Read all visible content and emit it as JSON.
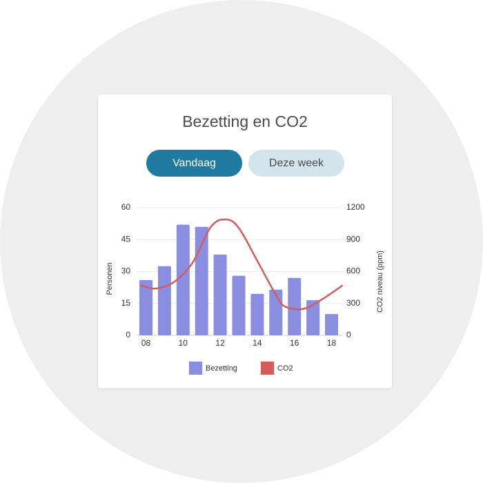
{
  "card": {
    "title": "Bezetting en CO2",
    "tabs": [
      {
        "label": "Vandaag",
        "active": true
      },
      {
        "label": "Deze week",
        "active": false
      }
    ]
  },
  "colors": {
    "bar": "#8a8ee0",
    "line": "#d45c5c",
    "tab_active_bg": "#1f7aa0",
    "tab_inactive_bg": "#d4e4ec"
  },
  "chart_data": {
    "type": "bar",
    "x": [
      8,
      9,
      10,
      11,
      12,
      13,
      14,
      15,
      16,
      17,
      18
    ],
    "x_tick_labels": [
      "08",
      "10",
      "12",
      "14",
      "16",
      "18"
    ],
    "x_tick_values": [
      8,
      10,
      12,
      14,
      16,
      18
    ],
    "series": [
      {
        "name": "Bezetting",
        "type": "bar",
        "axis": "left",
        "values": [
          26,
          32.5,
          52,
          51,
          38,
          28,
          19.5,
          21.5,
          27,
          16.5,
          10
        ]
      },
      {
        "name": "CO2",
        "type": "line",
        "axis": "right",
        "smooth": true,
        "x": [
          7.7,
          8.5,
          9.5,
          10.5,
          11.5,
          12.3,
          13,
          14,
          15,
          15.5,
          16.5,
          17.5,
          18.6
        ],
        "values": [
          470,
          440,
          500,
          680,
          1020,
          1090,
          1010,
          700,
          380,
          270,
          250,
          340,
          470
        ]
      }
    ],
    "ylabel": "Personen",
    "ylim": [
      0,
      60
    ],
    "yticks": [
      0,
      15,
      30,
      45,
      60
    ],
    "y2label": "CO2 niveau (ppm)",
    "y2lim": [
      0,
      1200
    ],
    "y2ticks": [
      0,
      300,
      600,
      900,
      1200
    ],
    "grid": true,
    "legend": [
      "Bezetting",
      "CO2"
    ],
    "legend_position": "bottom"
  }
}
